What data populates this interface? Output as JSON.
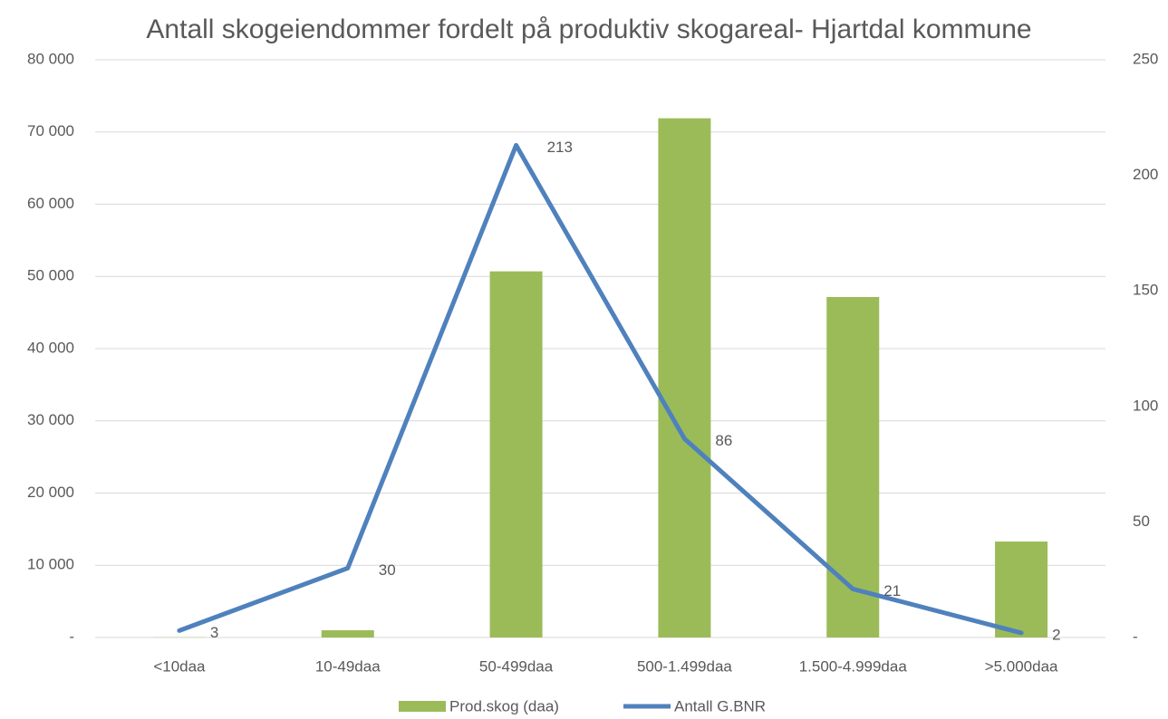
{
  "chart_data": {
    "type": "bar+line",
    "title": "Antall skogeiendommer fordelt på produktiv skogareal- Hjartdal kommune",
    "categories": [
      "<10daa",
      "10-49daa",
      "50-499daa",
      "500-1.499daa",
      "1.500-4.999daa",
      ">5.000daa"
    ],
    "series": [
      {
        "name": "Prod.skog (daa)",
        "type": "bar",
        "color": "#9bbb59",
        "axis": "y",
        "values": [
          30,
          1000,
          50700,
          71900,
          47150,
          13290
        ]
      },
      {
        "name": "Antall G.BNR",
        "type": "line",
        "color": "#4f81bd",
        "axis": "y2",
        "values": [
          3,
          30,
          213,
          86,
          21,
          2
        ]
      }
    ],
    "ylim": [
      0,
      80000
    ],
    "yticks": [
      {
        "value": 0,
        "label": "-"
      },
      {
        "value": 10000,
        "label": "10 000"
      },
      {
        "value": 20000,
        "label": "20 000"
      },
      {
        "value": 30000,
        "label": "30 000"
      },
      {
        "value": 40000,
        "label": "40 000"
      },
      {
        "value": 50000,
        "label": "50 000"
      },
      {
        "value": 60000,
        "label": "60 000"
      },
      {
        "value": 70000,
        "label": "70 000"
      },
      {
        "value": 80000,
        "label": "80 000"
      }
    ],
    "y2lim": [
      0,
      250
    ],
    "y2ticks": [
      {
        "value": 0,
        "label": "-"
      },
      50,
      100,
      150,
      200,
      250
    ],
    "grid": true,
    "legend": "bottom"
  }
}
